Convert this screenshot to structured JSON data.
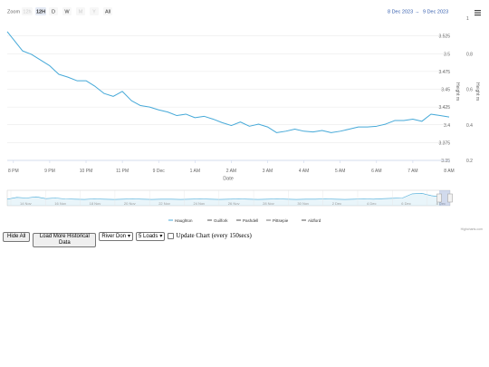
{
  "zoom": {
    "label": "Zoom",
    "buttons": [
      "12h",
      "12H",
      "D",
      "W",
      "M",
      "Y",
      "All"
    ],
    "active": 1
  },
  "range": {
    "from": "8 Dec 2023",
    "arrow": "→",
    "to": "9 Dec 2023"
  },
  "menu_icon": "hamburger-icon",
  "chart_data": {
    "type": "line",
    "xlabel": "Date",
    "x_ticks": [
      "8 PM",
      "9 PM",
      "10 PM",
      "11 PM",
      "9 Dec",
      "1 AM",
      "2 AM",
      "3 AM",
      "4 AM",
      "5 AM",
      "6 AM",
      "7 AM",
      "8 AM"
    ],
    "x_range_hours": [
      19.83,
      32.0
    ],
    "y_left": {
      "label": "Height m",
      "ticks": [
        "3.35",
        "3.375",
        "3.4",
        "3.425",
        "3.45",
        "3.475",
        "3.5",
        "3.525"
      ],
      "range": [
        3.35,
        3.55
      ]
    },
    "y_right": {
      "label": "Height m",
      "ticks": [
        "0.2",
        "0.4",
        "0.6",
        "0.8",
        "1"
      ],
      "range": [
        0.2,
        1.0
      ]
    },
    "series": [
      {
        "name": "Haughton",
        "color": "#46a9d8",
        "x": [
          19.83,
          20.25,
          20.5,
          20.75,
          21.0,
          21.25,
          21.5,
          21.75,
          22.0,
          22.25,
          22.5,
          22.75,
          23.0,
          23.25,
          23.5,
          23.75,
          24.0,
          24.25,
          24.5,
          24.75,
          25.0,
          25.25,
          25.5,
          25.75,
          26.0,
          26.25,
          26.5,
          26.75,
          27.0,
          27.25,
          27.5,
          27.75,
          28.0,
          28.25,
          28.5,
          28.75,
          29.0,
          29.25,
          29.5,
          29.75,
          30.0,
          30.25,
          30.5,
          30.75,
          31.0,
          31.25,
          31.5,
          31.75,
          32.0
        ],
        "y": [
          3.531,
          3.504,
          3.499,
          3.491,
          3.483,
          3.471,
          3.467,
          3.462,
          3.462,
          3.454,
          3.444,
          3.44,
          3.447,
          3.434,
          3.427,
          3.425,
          3.421,
          3.418,
          3.413,
          3.415,
          3.41,
          3.412,
          3.408,
          3.403,
          3.399,
          3.404,
          3.398,
          3.401,
          3.397,
          3.389,
          3.391,
          3.394,
          3.391,
          3.39,
          3.392,
          3.389,
          3.391,
          3.394,
          3.397,
          3.397,
          3.398,
          3.401,
          3.406,
          3.406,
          3.408,
          3.405,
          3.415,
          3.413,
          3.411
        ]
      },
      {
        "name": "Guilfork",
        "color": "#555555"
      },
      {
        "name": "Pashdell",
        "color": "#555555"
      },
      {
        "name": "Pittsepie",
        "color": "#777777"
      },
      {
        "name": "Aldford",
        "color": "#555555"
      }
    ]
  },
  "navigator": {
    "labels": [
      "14 Nov",
      "16 Nov",
      "18 Nov",
      "20 Nov",
      "22 Nov",
      "24 Nov",
      "26 Nov",
      "28 Nov",
      "30 Nov",
      "2 Dec",
      "4 Dec",
      "6 Dec",
      "8 Dec"
    ],
    "series": [
      0.4,
      0.55,
      0.5,
      0.6,
      0.45,
      0.5,
      0.42,
      0.4,
      0.38,
      0.42,
      0.4,
      0.38,
      0.4,
      0.42,
      0.4,
      0.38,
      0.4,
      0.4,
      0.38,
      0.4,
      0.42,
      0.4,
      0.38,
      0.4,
      0.42,
      0.4,
      0.38,
      0.4,
      0.42,
      0.4,
      0.38,
      0.4,
      0.4,
      0.42,
      0.4,
      0.38,
      0.4,
      0.42,
      0.4,
      0.45,
      0.48,
      0.5,
      0.85,
      0.9,
      0.7,
      0.6
    ]
  },
  "credits": "Highcharts.com",
  "controls": {
    "hide_all": "Hide All",
    "load_more": "Load More Historical Data",
    "river_select": "River Don",
    "loads_select": "5 Loads",
    "update_label": "Update Chart (every 150secs)"
  }
}
